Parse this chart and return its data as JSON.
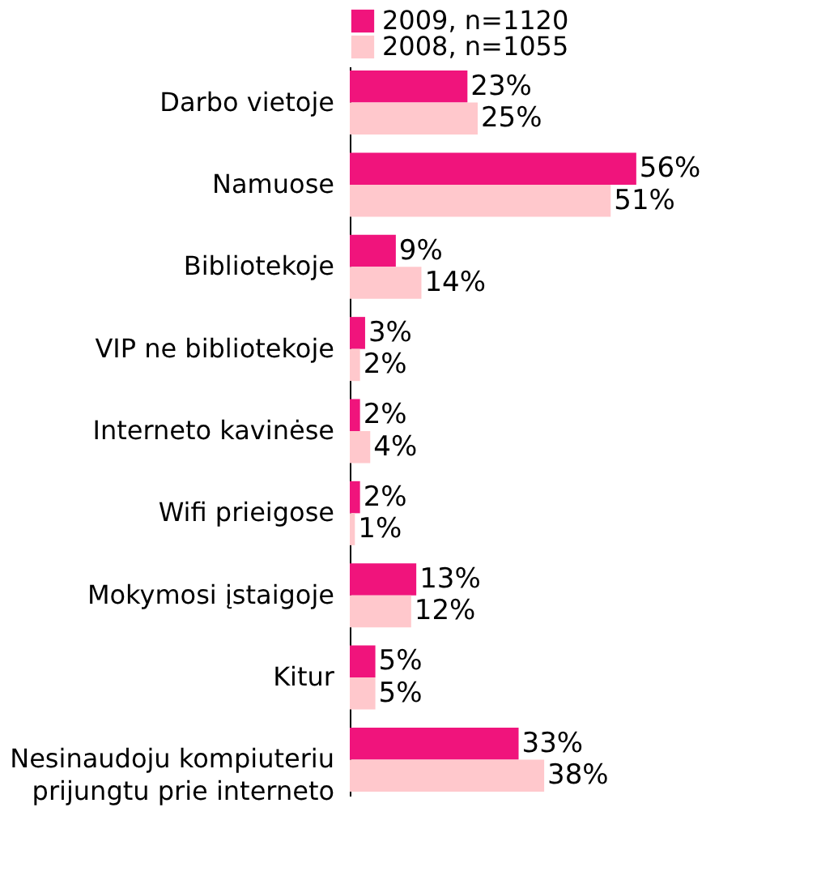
{
  "chart_data": {
    "type": "bar",
    "orientation": "horizontal",
    "legend": "top",
    "categories": [
      "Darbo vietoje",
      "Namuose",
      "Bibliotekoje",
      "VIP ne bibliotekoje",
      "Interneto kavinėse",
      "Wifi prieigose",
      "Mokymosi įstaigoje",
      "Kitur",
      "Nesinaudoju kompiuteriu\nprijungtu prie interneto"
    ],
    "series": [
      {
        "name": "2009, n=1120",
        "color": "#f0147c",
        "values": [
          23,
          56,
          9,
          3,
          2,
          2,
          13,
          5,
          33
        ],
        "value_labels": [
          "23%",
          "56%",
          "9%",
          "3%",
          "2%",
          "2%",
          "13%",
          "5%",
          "33%"
        ]
      },
      {
        "name": "2008, n=1055",
        "color": "#ffc8cc",
        "values": [
          25,
          51,
          14,
          2,
          4,
          1,
          12,
          5,
          38
        ],
        "value_labels": [
          "25%",
          "51%",
          "14%",
          "2%",
          "4%",
          "1%",
          "12%",
          "5%",
          "38%"
        ]
      }
    ]
  }
}
